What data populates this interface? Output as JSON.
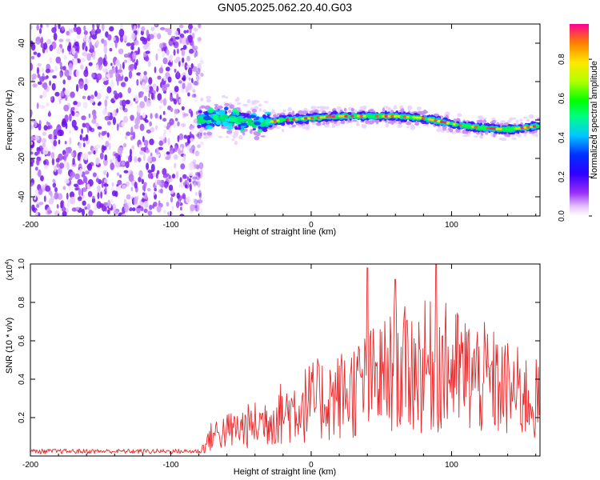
{
  "title": "GN05.2025.062.20.40.G03",
  "colors": {
    "snr_line": "#e8292b",
    "scatter": "#8a2be2",
    "colormap": [
      "#f4e6ff",
      "#c78cf2",
      "#7a1cf0",
      "#2200ff",
      "#00c8ff",
      "#00ff40",
      "#c8ff00",
      "#ffd000",
      "#ff2020"
    ]
  },
  "chart_data": [
    {
      "type": "heatmap",
      "name": "spectrogram",
      "xlabel": "Height of straight line (km)",
      "ylabel": "Frequency (Hz)",
      "xlim": [
        -200,
        163
      ],
      "ylim": [
        -50,
        50
      ],
      "xticks": [
        -200,
        -100,
        0,
        100
      ],
      "yticks": [
        -40,
        -20,
        0,
        20,
        40
      ],
      "noise_region_x": [
        -200,
        -80
      ],
      "signal_region_x": [
        -80,
        163
      ],
      "signal_center_freq_hz": [
        {
          "x": -80,
          "y": 0
        },
        {
          "x": -60,
          "y": 1
        },
        {
          "x": -40,
          "y": -2
        },
        {
          "x": -20,
          "y": 0
        },
        {
          "x": 0,
          "y": 1
        },
        {
          "x": 20,
          "y": 2
        },
        {
          "x": 40,
          "y": 2
        },
        {
          "x": 60,
          "y": 2
        },
        {
          "x": 80,
          "y": 1
        },
        {
          "x": 100,
          "y": -2
        },
        {
          "x": 120,
          "y": -4
        },
        {
          "x": 140,
          "y": -5
        },
        {
          "x": 163,
          "y": -3
        }
      ],
      "colorbar": {
        "label": "Normalized spectral amplitude",
        "ticks": [
          "0.0",
          "0.2",
          "0.4",
          "0.6",
          "0.8"
        ],
        "range": [
          0,
          0.98
        ]
      }
    },
    {
      "type": "line",
      "name": "snr",
      "xlabel": "Height of straight line (km)",
      "ylabel": "SNR (10 * v/v)",
      "scale_label": "(x10",
      "scale_exp": "4",
      "scale_close": ")",
      "xlim": [
        -200,
        163
      ],
      "ylim": [
        0,
        1.0
      ],
      "xticks": [
        -200,
        -100,
        0,
        100
      ],
      "yticks": [
        "0.2",
        "0.4",
        "0.6",
        "0.8",
        "1.0"
      ],
      "envelope": [
        {
          "x": -200,
          "y": 0.02
        },
        {
          "x": -80,
          "y": 0.02
        },
        {
          "x": -70,
          "y": 0.18
        },
        {
          "x": -40,
          "y": 0.26
        },
        {
          "x": -20,
          "y": 0.36
        },
        {
          "x": 0,
          "y": 0.45
        },
        {
          "x": 20,
          "y": 0.5
        },
        {
          "x": 40,
          "y": 0.6
        },
        {
          "x": 60,
          "y": 0.7
        },
        {
          "x": 90,
          "y": 0.75
        },
        {
          "x": 120,
          "y": 0.65
        },
        {
          "x": 140,
          "y": 0.55
        },
        {
          "x": 163,
          "y": 0.45
        }
      ],
      "peaks": [
        {
          "x": 40,
          "y": 0.98
        },
        {
          "x": 60,
          "y": 0.92
        },
        {
          "x": 89,
          "y": 1.0
        }
      ]
    }
  ]
}
